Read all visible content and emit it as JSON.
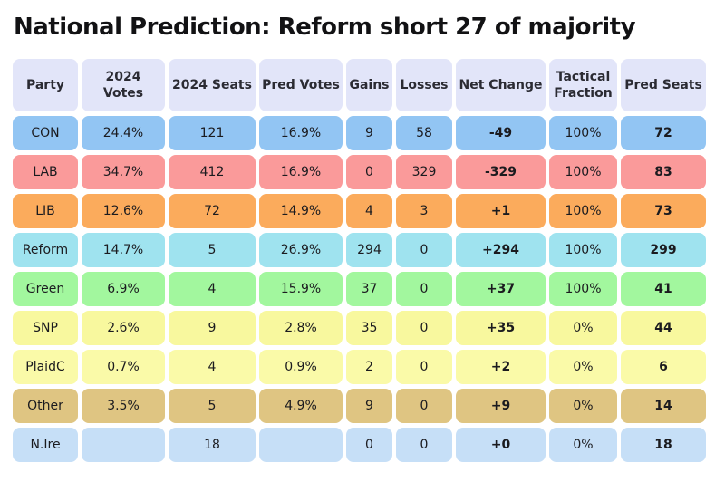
{
  "title": "National Prediction: Reform short 27 of majority",
  "colors": {
    "page_bg": "#ffffff",
    "header_bg": "#e2e5f9",
    "title_text": "#121214",
    "cell_text": "#1b1b1f"
  },
  "chart_data": {
    "type": "table",
    "title": "National Prediction: Reform short 27 of majority",
    "columns": [
      "Party",
      "2024 Votes",
      "2024 Seats",
      "Pred Votes",
      "Gains",
      "Losses",
      "Net Change",
      "Tactical Fraction",
      "Pred Seats"
    ],
    "rows": [
      {
        "party": "CON",
        "votes2024": "24.4%",
        "seats2024": "121",
        "pred_votes": "16.9%",
        "gains": "9",
        "losses": "58",
        "net_change": "-49",
        "tactical_fraction": "100%",
        "pred_seats": "72",
        "row_color": "#92c5f3"
      },
      {
        "party": "LAB",
        "votes2024": "34.7%",
        "seats2024": "412",
        "pred_votes": "16.9%",
        "gains": "0",
        "losses": "329",
        "net_change": "-329",
        "tactical_fraction": "100%",
        "pred_seats": "83",
        "row_color": "#fa9a9a"
      },
      {
        "party": "LIB",
        "votes2024": "12.6%",
        "seats2024": "72",
        "pred_votes": "14.9%",
        "gains": "4",
        "losses": "3",
        "net_change": "+1",
        "tactical_fraction": "100%",
        "pred_seats": "73",
        "row_color": "#fbab5c"
      },
      {
        "party": "Reform",
        "votes2024": "14.7%",
        "seats2024": "5",
        "pred_votes": "26.9%",
        "gains": "294",
        "losses": "0",
        "net_change": "+294",
        "tactical_fraction": "100%",
        "pred_seats": "299",
        "row_color": "#9fe3ef"
      },
      {
        "party": "Green",
        "votes2024": "6.9%",
        "seats2024": "4",
        "pred_votes": "15.9%",
        "gains": "37",
        "losses": "0",
        "net_change": "+37",
        "tactical_fraction": "100%",
        "pred_seats": "41",
        "row_color": "#a2f79e"
      },
      {
        "party": "SNP",
        "votes2024": "2.6%",
        "seats2024": "9",
        "pred_votes": "2.8%",
        "gains": "35",
        "losses": "0",
        "net_change": "+35",
        "tactical_fraction": "0%",
        "pred_seats": "44",
        "row_color": "#f8f89e"
      },
      {
        "party": "PlaidC",
        "votes2024": "0.7%",
        "seats2024": "4",
        "pred_votes": "0.9%",
        "gains": "2",
        "losses": "0",
        "net_change": "+2",
        "tactical_fraction": "0%",
        "pred_seats": "6",
        "row_color": "#fafaa8"
      },
      {
        "party": "Other",
        "votes2024": "3.5%",
        "seats2024": "5",
        "pred_votes": "4.9%",
        "gains": "9",
        "losses": "0",
        "net_change": "+9",
        "tactical_fraction": "0%",
        "pred_seats": "14",
        "row_color": "#dfc582"
      },
      {
        "party": "N.Ire",
        "votes2024": "",
        "seats2024": "18",
        "pred_votes": "",
        "gains": "0",
        "losses": "0",
        "net_change": "+0",
        "tactical_fraction": "0%",
        "pred_seats": "18",
        "row_color": "#c6dff7"
      }
    ]
  }
}
